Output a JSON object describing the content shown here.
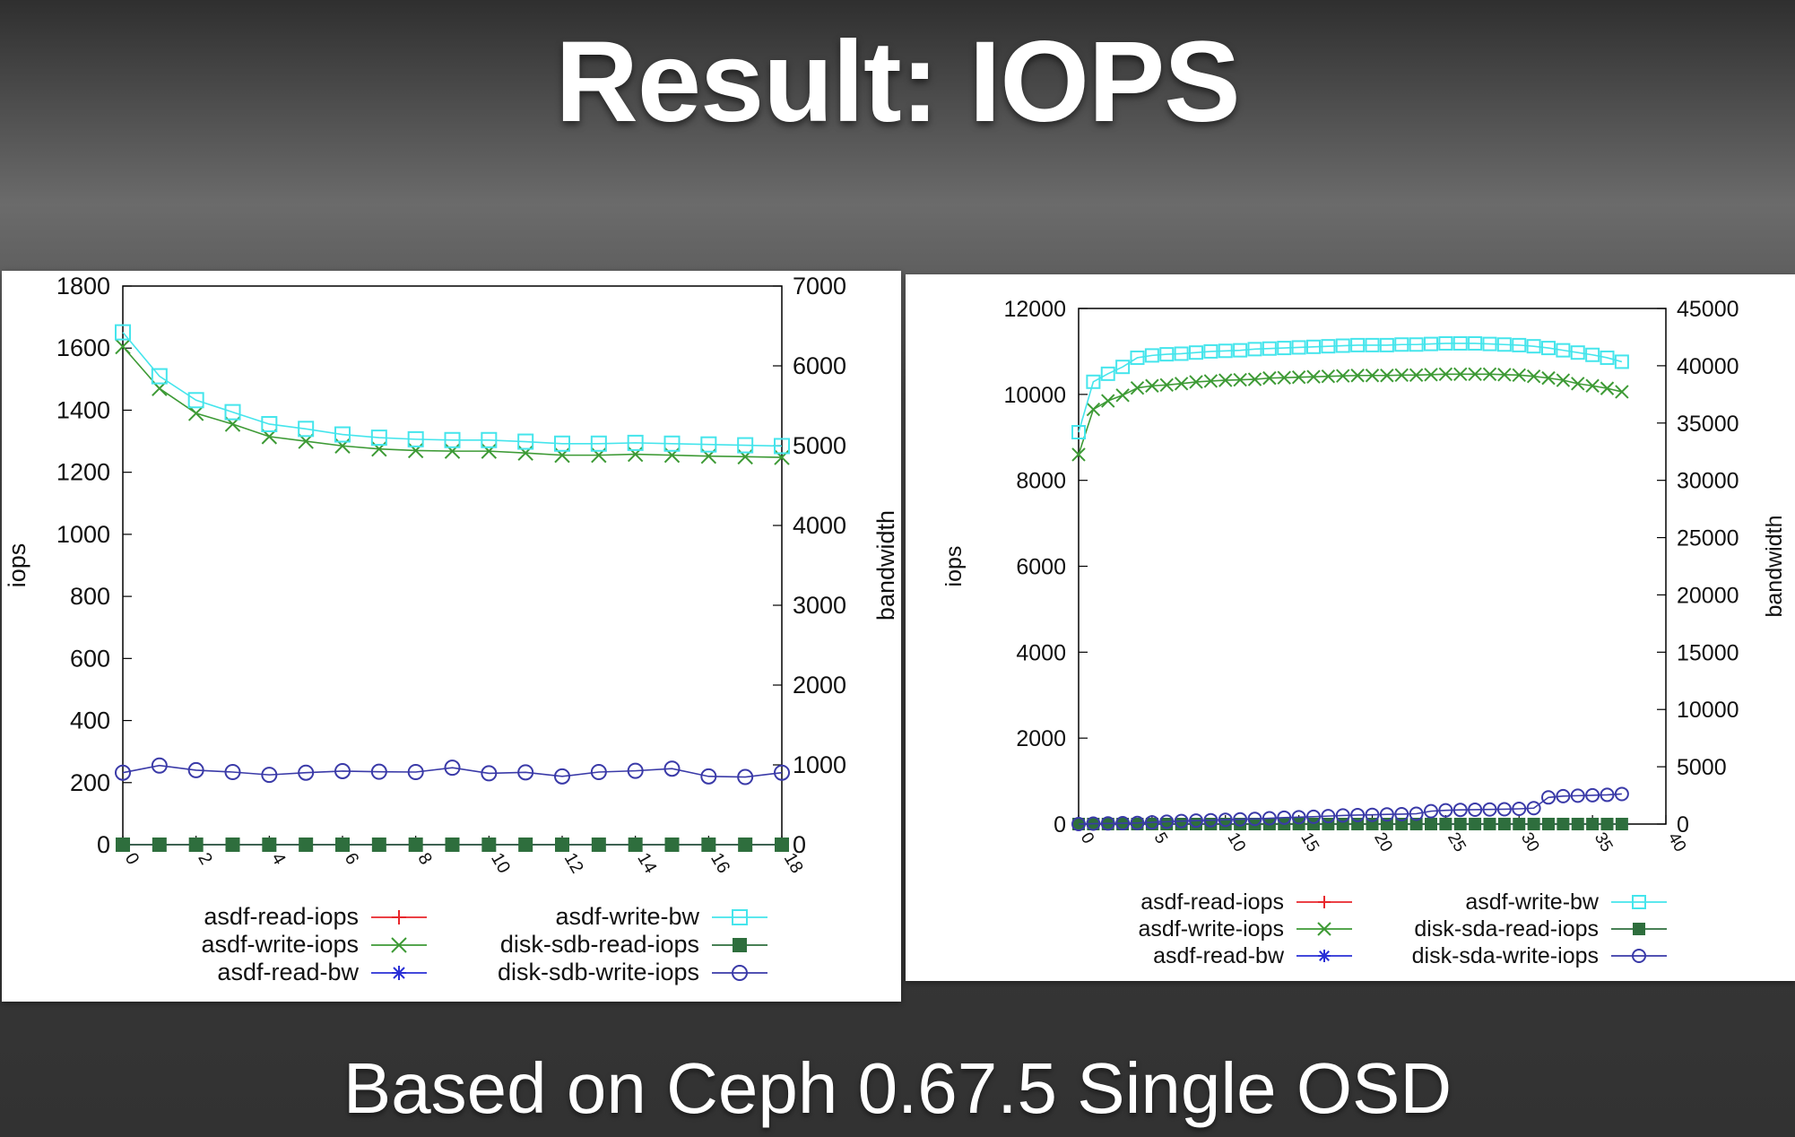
{
  "slide": {
    "title": "Result: IOPS",
    "subtitle": "Based on Ceph 0.67.5 Single OSD"
  },
  "colors": {
    "red": "#e8262b",
    "green": "#3d9a35",
    "blue": "#2a2fd6",
    "cyan": "#45e5ec",
    "darkgreen": "#2e6e3d",
    "navy": "#3a3aa8"
  },
  "chart_data": [
    {
      "type": "line",
      "title": "",
      "xlabel": "",
      "ylabel": "iops",
      "y2label": "bandwidth",
      "xlim": [
        0,
        18
      ],
      "ylim": [
        0,
        1800
      ],
      "y2lim": [
        0,
        7000
      ],
      "xticks": [
        0,
        2,
        4,
        6,
        8,
        10,
        12,
        14,
        16,
        18
      ],
      "yticks": [
        0,
        200,
        400,
        600,
        800,
        1000,
        1200,
        1400,
        1600,
        1800
      ],
      "y2ticks": [
        0,
        1000,
        2000,
        3000,
        4000,
        5000,
        6000,
        7000
      ],
      "grid": false,
      "legend": "bottom",
      "x": [
        0,
        1,
        2,
        3,
        4,
        5,
        6,
        7,
        8,
        9,
        10,
        11,
        12,
        13,
        14,
        15,
        16,
        17,
        18
      ],
      "series": [
        {
          "name": "asdf-read-iops",
          "axis": "y",
          "marker": "plus",
          "color": "red",
          "values": [
            0,
            0,
            0,
            0,
            0,
            0,
            0,
            0,
            0,
            0,
            0,
            0,
            0,
            0,
            0,
            0,
            0,
            0,
            0
          ]
        },
        {
          "name": "asdf-write-iops",
          "axis": "y",
          "marker": "x",
          "color": "green",
          "values": [
            1605,
            1470,
            1390,
            1355,
            1315,
            1300,
            1285,
            1275,
            1270,
            1268,
            1268,
            1262,
            1255,
            1255,
            1258,
            1255,
            1252,
            1250,
            1248
          ]
        },
        {
          "name": "asdf-read-bw",
          "axis": "y2",
          "marker": "star",
          "color": "blue",
          "values": [
            0,
            0,
            0,
            0,
            0,
            0,
            0,
            0,
            0,
            0,
            0,
            0,
            0,
            0,
            0,
            0,
            0,
            0,
            0
          ]
        },
        {
          "name": "asdf-write-bw",
          "axis": "y2",
          "marker": "square-open",
          "color": "cyan",
          "values": [
            6420,
            5870,
            5570,
            5420,
            5270,
            5210,
            5140,
            5100,
            5080,
            5070,
            5070,
            5050,
            5025,
            5025,
            5035,
            5025,
            5015,
            5005,
            4995
          ]
        },
        {
          "name": "disk-sdb-read-iops",
          "axis": "y",
          "marker": "square-filled",
          "color": "darkgreen",
          "values": [
            0,
            0,
            0,
            0,
            0,
            0,
            0,
            0,
            0,
            0,
            0,
            0,
            0,
            0,
            0,
            0,
            0,
            0,
            0
          ]
        },
        {
          "name": "disk-sdb-write-iops",
          "axis": "y",
          "marker": "circle-open",
          "color": "navy",
          "values": [
            232,
            255,
            240,
            234,
            225,
            232,
            237,
            235,
            234,
            248,
            230,
            233,
            220,
            234,
            238,
            245,
            220,
            218,
            232
          ]
        }
      ]
    },
    {
      "type": "line",
      "title": "",
      "xlabel": "",
      "ylabel": "iops",
      "y2label": "bandwidth",
      "xlim": [
        0,
        40
      ],
      "ylim": [
        0,
        12000
      ],
      "y2lim": [
        0,
        45000
      ],
      "xticks": [
        0,
        5,
        10,
        15,
        20,
        25,
        30,
        35,
        40
      ],
      "yticks": [
        0,
        2000,
        4000,
        6000,
        8000,
        10000,
        12000
      ],
      "y2ticks": [
        0,
        5000,
        10000,
        15000,
        20000,
        25000,
        30000,
        35000,
        40000,
        45000
      ],
      "grid": false,
      "legend": "bottom",
      "x": [
        0,
        1,
        2,
        3,
        4,
        5,
        6,
        7,
        8,
        9,
        10,
        11,
        12,
        13,
        14,
        15,
        16,
        17,
        18,
        19,
        20,
        21,
        22,
        23,
        24,
        25,
        26,
        27,
        28,
        29,
        30,
        31,
        32,
        33,
        34,
        35,
        36,
        37
      ],
      "series": [
        {
          "name": "asdf-read-iops",
          "axis": "y",
          "marker": "plus",
          "color": "red",
          "values": [
            0,
            0,
            0,
            0,
            0,
            0,
            0,
            0,
            0,
            0,
            0,
            0,
            0,
            0,
            0,
            0,
            0,
            0,
            0,
            0,
            0,
            0,
            0,
            0,
            0,
            0,
            0,
            0,
            0,
            0,
            0,
            0,
            0,
            0,
            0,
            0,
            0,
            0
          ]
        },
        {
          "name": "asdf-write-iops",
          "axis": "y",
          "marker": "x",
          "color": "green",
          "values": [
            8600,
            9650,
            9850,
            9980,
            10150,
            10200,
            10220,
            10250,
            10290,
            10310,
            10330,
            10340,
            10350,
            10380,
            10390,
            10400,
            10410,
            10420,
            10430,
            10440,
            10440,
            10440,
            10450,
            10450,
            10460,
            10470,
            10470,
            10470,
            10470,
            10460,
            10450,
            10420,
            10380,
            10330,
            10250,
            10200,
            10140,
            10060
          ]
        },
        {
          "name": "asdf-read-bw",
          "axis": "y2",
          "marker": "star",
          "color": "blue",
          "values": [
            0,
            0,
            0,
            0,
            0,
            0,
            0,
            0,
            0,
            0,
            0,
            0,
            0,
            0,
            0,
            0,
            0,
            0,
            0,
            0,
            0,
            0,
            0,
            0,
            0,
            0,
            0,
            0,
            0,
            0,
            0,
            0,
            0,
            0,
            0,
            0,
            0,
            0
          ]
        },
        {
          "name": "asdf-write-bw",
          "axis": "y2",
          "marker": "square-open",
          "color": "cyan",
          "values": [
            34200,
            38600,
            39300,
            39900,
            40700,
            40900,
            41000,
            41050,
            41150,
            41250,
            41300,
            41350,
            41450,
            41500,
            41550,
            41600,
            41650,
            41700,
            41750,
            41800,
            41800,
            41800,
            41850,
            41850,
            41900,
            41950,
            41950,
            41950,
            41900,
            41850,
            41800,
            41700,
            41550,
            41350,
            41150,
            40950,
            40700,
            40350
          ]
        },
        {
          "name": "disk-sda-read-iops",
          "axis": "y",
          "marker": "square-filled",
          "color": "darkgreen",
          "values": [
            0,
            0,
            0,
            0,
            0,
            0,
            0,
            0,
            0,
            0,
            0,
            0,
            0,
            0,
            0,
            0,
            0,
            0,
            0,
            0,
            0,
            0,
            0,
            0,
            0,
            0,
            0,
            0,
            0,
            0,
            0,
            0,
            0,
            0,
            0,
            0,
            0,
            0
          ]
        },
        {
          "name": "disk-sda-write-iops",
          "axis": "y",
          "marker": "circle-open",
          "color": "navy",
          "values": [
            0,
            10,
            15,
            20,
            25,
            40,
            55,
            70,
            80,
            90,
            100,
            110,
            120,
            135,
            150,
            160,
            170,
            185,
            200,
            210,
            215,
            225,
            230,
            240,
            300,
            320,
            330,
            335,
            340,
            345,
            355,
            370,
            620,
            650,
            660,
            670,
            680,
            700
          ]
        }
      ]
    }
  ]
}
